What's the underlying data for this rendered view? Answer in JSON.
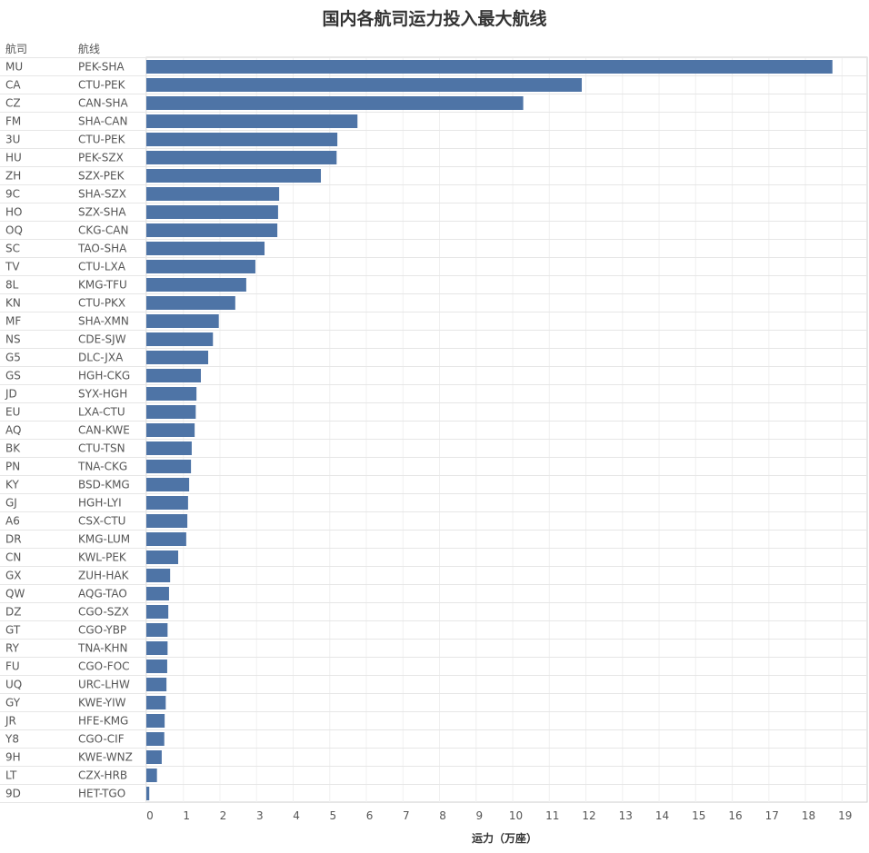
{
  "title": "国内各航司运力投入最大航线",
  "headers": {
    "airline": "航司",
    "route": "航线"
  },
  "colors": {
    "bar": "#4e74a6",
    "grid": "#e6e6e6",
    "text": "#555555",
    "title": "#333333"
  },
  "chart_data": {
    "type": "bar",
    "orientation": "horizontal",
    "title": "国内各航司运力投入最大航线",
    "xlabel": "运力（万座）",
    "ylabel": "",
    "xlim": [
      0,
      19.7
    ],
    "xticks": [
      0,
      1,
      2,
      3,
      4,
      5,
      6,
      7,
      8,
      9,
      10,
      11,
      12,
      13,
      14,
      15,
      16,
      17,
      18,
      19
    ],
    "grid": true,
    "rows": [
      {
        "airline": "MU",
        "route": "PEK-SHA",
        "value": 18.75
      },
      {
        "airline": "CA",
        "route": "CTU-PEK",
        "value": 11.9
      },
      {
        "airline": "CZ",
        "route": "CAN-SHA",
        "value": 10.3
      },
      {
        "airline": "FM",
        "route": "SHA-CAN",
        "value": 5.77
      },
      {
        "airline": "3U",
        "route": "CTU-PEK",
        "value": 5.22
      },
      {
        "airline": "HU",
        "route": "PEK-SZX",
        "value": 5.2
      },
      {
        "airline": "ZH",
        "route": "SZX-PEK",
        "value": 4.77
      },
      {
        "airline": "9C",
        "route": "SHA-SZX",
        "value": 3.63
      },
      {
        "airline": "HO",
        "route": "SZX-SHA",
        "value": 3.6
      },
      {
        "airline": "OQ",
        "route": "CKG-CAN",
        "value": 3.58
      },
      {
        "airline": "SC",
        "route": "TAO-SHA",
        "value": 3.23
      },
      {
        "airline": "TV",
        "route": "CTU-LXA",
        "value": 2.98
      },
      {
        "airline": "8L",
        "route": "KMG-TFU",
        "value": 2.73
      },
      {
        "airline": "KN",
        "route": "CTU-PKX",
        "value": 2.43
      },
      {
        "airline": "MF",
        "route": "SHA-XMN",
        "value": 1.98
      },
      {
        "airline": "NS",
        "route": "CDE-SJW",
        "value": 1.82
      },
      {
        "airline": "G5",
        "route": "DLC-JXA",
        "value": 1.69
      },
      {
        "airline": "GS",
        "route": "HGH-CKG",
        "value": 1.49
      },
      {
        "airline": "JD",
        "route": "SYX-HGH",
        "value": 1.37
      },
      {
        "airline": "EU",
        "route": "LXA-CTU",
        "value": 1.35
      },
      {
        "airline": "AQ",
        "route": "CAN-KWE",
        "value": 1.32
      },
      {
        "airline": "BK",
        "route": "CTU-TSN",
        "value": 1.24
      },
      {
        "airline": "PN",
        "route": "TNA-CKG",
        "value": 1.22
      },
      {
        "airline": "KY",
        "route": "BSD-KMG",
        "value": 1.17
      },
      {
        "airline": "GJ",
        "route": "HGH-LYI",
        "value": 1.14
      },
      {
        "airline": "A6",
        "route": "CSX-CTU",
        "value": 1.12
      },
      {
        "airline": "DR",
        "route": "KMG-LUM",
        "value": 1.09
      },
      {
        "airline": "CN",
        "route": "KWL-PEK",
        "value": 0.87
      },
      {
        "airline": "GX",
        "route": "ZUH-HAK",
        "value": 0.65
      },
      {
        "airline": "QW",
        "route": "AQG-TAO",
        "value": 0.62
      },
      {
        "airline": "DZ",
        "route": "CGO-SZX",
        "value": 0.6
      },
      {
        "airline": "GT",
        "route": "CGO-YBP",
        "value": 0.58
      },
      {
        "airline": "RY",
        "route": "TNA-KHN",
        "value": 0.58
      },
      {
        "airline": "FU",
        "route": "CGO-FOC",
        "value": 0.57
      },
      {
        "airline": "UQ",
        "route": "URC-LHW",
        "value": 0.55
      },
      {
        "airline": "GY",
        "route": "KWE-YIW",
        "value": 0.53
      },
      {
        "airline": "JR",
        "route": "HFE-KMG",
        "value": 0.5
      },
      {
        "airline": "Y8",
        "route": "CGO-CIF",
        "value": 0.49
      },
      {
        "airline": "9H",
        "route": "KWE-WNZ",
        "value": 0.42
      },
      {
        "airline": "LT",
        "route": "CZX-HRB",
        "value": 0.29
      },
      {
        "airline": "9D",
        "route": "HET-TGO",
        "value": 0.08
      }
    ]
  }
}
